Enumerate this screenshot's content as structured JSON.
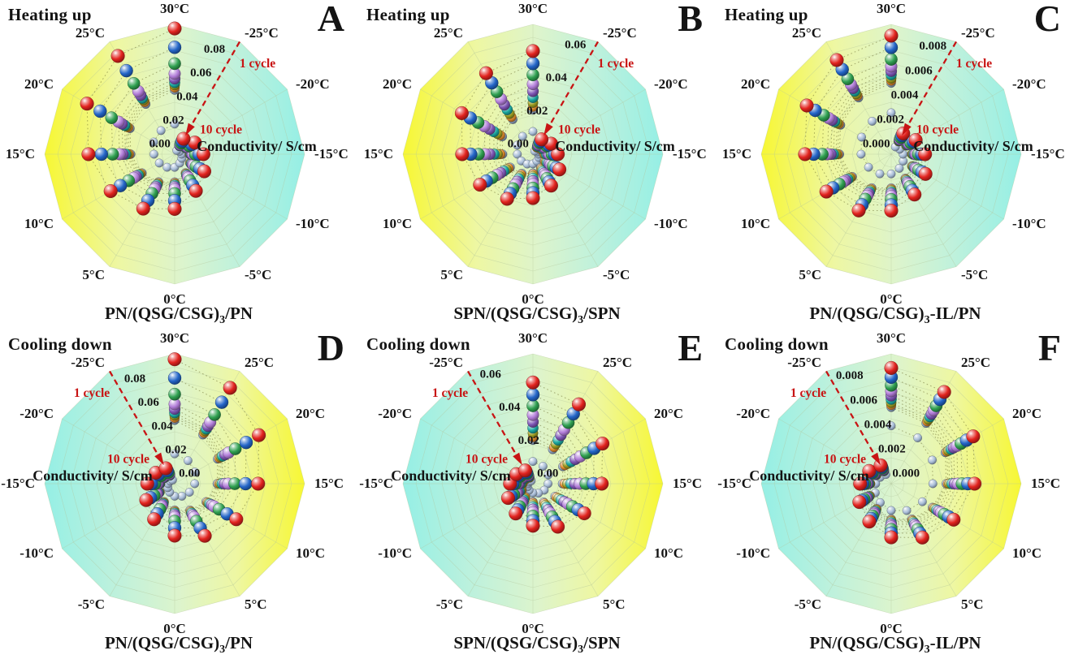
{
  "shared": {
    "temps": [
      "30°C",
      "25°C",
      "20°C",
      "15°C",
      "10°C",
      "5°C",
      "0°C",
      "-5°C",
      "-10°C",
      "-15°C",
      "-20°C",
      "-25°C"
    ],
    "temp_values_c": [
      30,
      25,
      20,
      15,
      10,
      5,
      0,
      -5,
      -10,
      -15,
      -20,
      -25
    ],
    "radial_axis_label": "Conductivity/ S/cm",
    "arrow_outer_label": "1 cycle",
    "arrow_inner_label": "10 cycle",
    "n_cycles": 10,
    "cycle_colors": [
      "#e2231e",
      "#2365c8",
      "#2fa050",
      "#b27dd9",
      "#7e55b5",
      "#1ba8a0",
      "#9c9c21",
      "#e08a2d",
      "#8ba0bd",
      "#a8bdd8"
    ],
    "warm_color": "#f7f733",
    "mid_color": "#ddf4cc",
    "cool_color": "#95efe5",
    "grid_color": "#b3c69b",
    "arrow_color": "#c81414",
    "text_color": "#141414"
  },
  "chart_data": [
    {
      "type": "scatter",
      "coordinate": "polar",
      "panel": "A",
      "mode": "Heating up",
      "sample": "PN/(QSG/CSG)3/PN",
      "title_pre": "PN/(QSG/CSG)",
      "title_sub": "3",
      "title_post": "/PN",
      "angular_categories": [
        "30°C",
        "25°C",
        "20°C",
        "15°C",
        "10°C",
        "5°C",
        "0°C",
        "-5°C",
        "-10°C",
        "-15°C",
        "-20°C",
        "-25°C"
      ],
      "radial_max": 0.095,
      "tick_values": [
        0,
        0.02,
        0.04,
        0.06,
        0.08
      ],
      "tick_labels": [
        "0.00",
        "0.02",
        "0.04",
        "0.06",
        "0.08"
      ],
      "cycle1_values_S_per_cm": [
        0.092,
        0.083,
        0.074,
        0.063,
        0.054,
        0.046,
        0.04,
        0.031,
        0.025,
        0.021,
        0.017,
        0.013
      ],
      "cycle_decay_factors": [
        1.0,
        0.85,
        0.72,
        0.64,
        0.6,
        0.57,
        0.55,
        0.53,
        0.51,
        0.24
      ]
    },
    {
      "type": "scatter",
      "coordinate": "polar",
      "panel": "B",
      "mode": "Heating up",
      "sample": "SPN/(QSG/CSG)3/SPN",
      "title_pre": "SPN/(QSG/CSG)",
      "title_sub": "3",
      "title_post": "/SPN",
      "angular_categories": [
        "30°C",
        "25°C",
        "20°C",
        "15°C",
        "10°C",
        "5°C",
        "0°C",
        "-5°C",
        "-10°C",
        "-15°C",
        "-20°C",
        "-25°C"
      ],
      "radial_max": 0.068,
      "tick_values": [
        0,
        0.02,
        0.04,
        0.06
      ],
      "tick_labels": [
        "0.00",
        "0.02",
        "0.04",
        "0.06"
      ],
      "cycle1_values_S_per_cm": [
        0.054,
        0.049,
        0.043,
        0.037,
        0.032,
        0.027,
        0.023,
        0.019,
        0.016,
        0.013,
        0.011,
        0.009
      ],
      "cycle_decay_factors": [
        1.0,
        0.88,
        0.77,
        0.68,
        0.61,
        0.55,
        0.5,
        0.46,
        0.43,
        0.22
      ]
    },
    {
      "type": "scatter",
      "coordinate": "polar",
      "panel": "C",
      "mode": "Heating up",
      "sample": "PN/(QSG/CSG)3-IL/PN",
      "title_pre": "PN/(QSG/CSG)",
      "title_sub": "3",
      "title_post": "-IL/PN",
      "angular_categories": [
        "30°C",
        "25°C",
        "20°C",
        "15°C",
        "10°C",
        "5°C",
        "0°C",
        "-5°C",
        "-10°C",
        "-15°C",
        "-20°C",
        "-25°C"
      ],
      "radial_max": 0.0092,
      "tick_values": [
        0,
        0.002,
        0.004,
        0.006,
        0.008
      ],
      "tick_labels": [
        "0.000",
        "0.002",
        "0.004",
        "0.006",
        "0.008"
      ],
      "cycle1_values_S_per_cm": [
        0.0084,
        0.0077,
        0.0069,
        0.0061,
        0.0053,
        0.0046,
        0.004,
        0.0033,
        0.0028,
        0.0024,
        0.002,
        0.0017
      ],
      "cycle_decay_factors": [
        1.0,
        0.9,
        0.8,
        0.74,
        0.7,
        0.67,
        0.64,
        0.62,
        0.6,
        0.35
      ]
    },
    {
      "type": "scatter",
      "coordinate": "polar",
      "panel": "D",
      "mode": "Cooling down",
      "sample": "PN/(QSG/CSG)3/PN",
      "title_pre": "PN/(QSG/CSG)",
      "title_sub": "3",
      "title_post": "/PN",
      "angular_categories": [
        "30°C",
        "25°C",
        "20°C",
        "15°C",
        "10°C",
        "5°C",
        "0°C",
        "-5°C",
        "-10°C",
        "-15°C",
        "-20°C",
        "-25°C"
      ],
      "radial_max": 0.095,
      "tick_values": [
        0,
        0.02,
        0.04,
        0.06,
        0.08
      ],
      "tick_labels": [
        "0.00",
        "0.02",
        "0.04",
        "0.06",
        "0.08"
      ],
      "cycle1_values_S_per_cm": [
        0.091,
        0.081,
        0.071,
        0.061,
        0.052,
        0.044,
        0.038,
        0.03,
        0.024,
        0.02,
        0.016,
        0.013
      ],
      "cycle_decay_factors": [
        1.0,
        0.85,
        0.72,
        0.64,
        0.6,
        0.57,
        0.55,
        0.53,
        0.51,
        0.24
      ]
    },
    {
      "type": "scatter",
      "coordinate": "polar",
      "panel": "E",
      "mode": "Cooling down",
      "sample": "SPN/(QSG/CSG)3/SPN",
      "title_pre": "SPN/(QSG/CSG)",
      "title_sub": "3",
      "title_post": "/SPN",
      "angular_categories": [
        "30°C",
        "25°C",
        "20°C",
        "15°C",
        "10°C",
        "5°C",
        "0°C",
        "-5°C",
        "-10°C",
        "-15°C",
        "-20°C",
        "-25°C"
      ],
      "radial_max": 0.068,
      "tick_values": [
        0,
        0.02,
        0.04,
        0.06
      ],
      "tick_labels": [
        "0.00",
        "0.02",
        "0.04",
        "0.06"
      ],
      "cycle1_values_S_per_cm": [
        0.053,
        0.048,
        0.042,
        0.036,
        0.031,
        0.026,
        0.022,
        0.018,
        0.015,
        0.012,
        0.01,
        0.008
      ],
      "cycle_decay_factors": [
        1.0,
        0.88,
        0.77,
        0.68,
        0.61,
        0.55,
        0.5,
        0.46,
        0.43,
        0.22
      ]
    },
    {
      "type": "scatter",
      "coordinate": "polar",
      "panel": "F",
      "mode": "Cooling down",
      "sample": "PN/(QSG/CSG)3-IL/PN",
      "title_pre": "PN/(QSG/CSG)",
      "title_sub": "3",
      "title_post": "-IL/PN",
      "angular_categories": [
        "30°C",
        "25°C",
        "20°C",
        "15°C",
        "10°C",
        "5°C",
        "0°C",
        "-5°C",
        "-10°C",
        "-15°C",
        "-20°C",
        "-25°C"
      ],
      "radial_max": 0.0092,
      "tick_values": [
        0,
        0.002,
        0.004,
        0.006,
        0.008
      ],
      "tick_labels": [
        "0.000",
        "0.002",
        "0.004",
        "0.006",
        "0.008"
      ],
      "cycle1_values_S_per_cm": [
        0.0082,
        0.0075,
        0.0067,
        0.0059,
        0.0051,
        0.0044,
        0.0038,
        0.0031,
        0.0026,
        0.0022,
        0.0018,
        0.0015
      ],
      "cycle_decay_factors": [
        1.0,
        0.92,
        0.85,
        0.8,
        0.76,
        0.73,
        0.7,
        0.68,
        0.66,
        0.5
      ]
    }
  ]
}
